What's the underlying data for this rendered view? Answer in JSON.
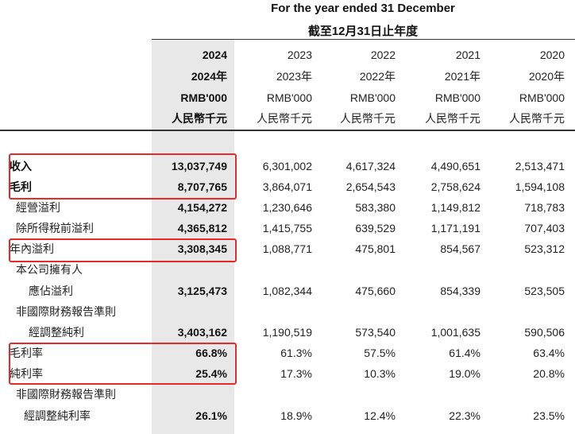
{
  "header": {
    "line1": "For the year ended 31 December",
    "line2": "截至12月31日止年度"
  },
  "columns": [
    {
      "year": "2024",
      "year_zh": "2024年",
      "unit": "RMB'000",
      "unit_zh": "人民幣千元"
    },
    {
      "year": "2023",
      "year_zh": "2023年",
      "unit": "RMB'000",
      "unit_zh": "人民幣千元"
    },
    {
      "year": "2022",
      "year_zh": "2022年",
      "unit": "RMB'000",
      "unit_zh": "人民幣千元"
    },
    {
      "year": "2021",
      "year_zh": "2021年",
      "unit": "RMB'000",
      "unit_zh": "人民幣千元"
    },
    {
      "year": "2020",
      "year_zh": "2020年",
      "unit": "RMB'000",
      "unit_zh": "人民幣千元"
    }
  ],
  "rows": [
    {
      "label": "收入",
      "values": [
        "13,037,749",
        "6,301,002",
        "4,617,324",
        "4,490,651",
        "2,513,471"
      ]
    },
    {
      "label": "毛利",
      "values": [
        "8,707,765",
        "3,864,071",
        "2,654,543",
        "2,758,624",
        "1,594,108"
      ]
    },
    {
      "label": "經營溢利",
      "values": [
        "4,154,272",
        "1,230,646",
        "583,380",
        "1,149,812",
        "718,783"
      ]
    },
    {
      "label": "除所得稅前溢利",
      "values": [
        "4,365,812",
        "1,415,755",
        "639,529",
        "1,171,191",
        "707,403"
      ]
    },
    {
      "label": "年內溢利",
      "values": [
        "3,308,345",
        "1,088,771",
        "475,801",
        "854,567",
        "523,312"
      ]
    },
    {
      "label": "本公司擁有人",
      "values": [
        "",
        "",
        "",
        "",
        ""
      ]
    },
    {
      "label": "應佔溢利",
      "values": [
        "3,125,473",
        "1,082,344",
        "475,660",
        "854,339",
        "523,505"
      ]
    },
    {
      "label": "非國際財務報告準則",
      "values": [
        "",
        "",
        "",
        "",
        ""
      ]
    },
    {
      "label": "經調整純利",
      "values": [
        "3,403,162",
        "1,190,519",
        "573,540",
        "1,001,635",
        "590,506"
      ]
    },
    {
      "label": "毛利率",
      "values": [
        "66.8%",
        "61.3%",
        "57.5%",
        "61.4%",
        "63.4%"
      ]
    },
    {
      "label": "純利率",
      "values": [
        "25.4%",
        "17.3%",
        "10.3%",
        "19.0%",
        "20.8%"
      ]
    },
    {
      "label": "非國際財務報告準則",
      "values": [
        "",
        "",
        "",
        "",
        ""
      ]
    },
    {
      "label": "經調整純利率",
      "values": [
        "26.1%",
        "18.9%",
        "12.4%",
        "22.3%",
        "23.5%"
      ]
    }
  ],
  "colors": {
    "highlight": "#e32b2b",
    "shade": "#e8e8e8"
  }
}
